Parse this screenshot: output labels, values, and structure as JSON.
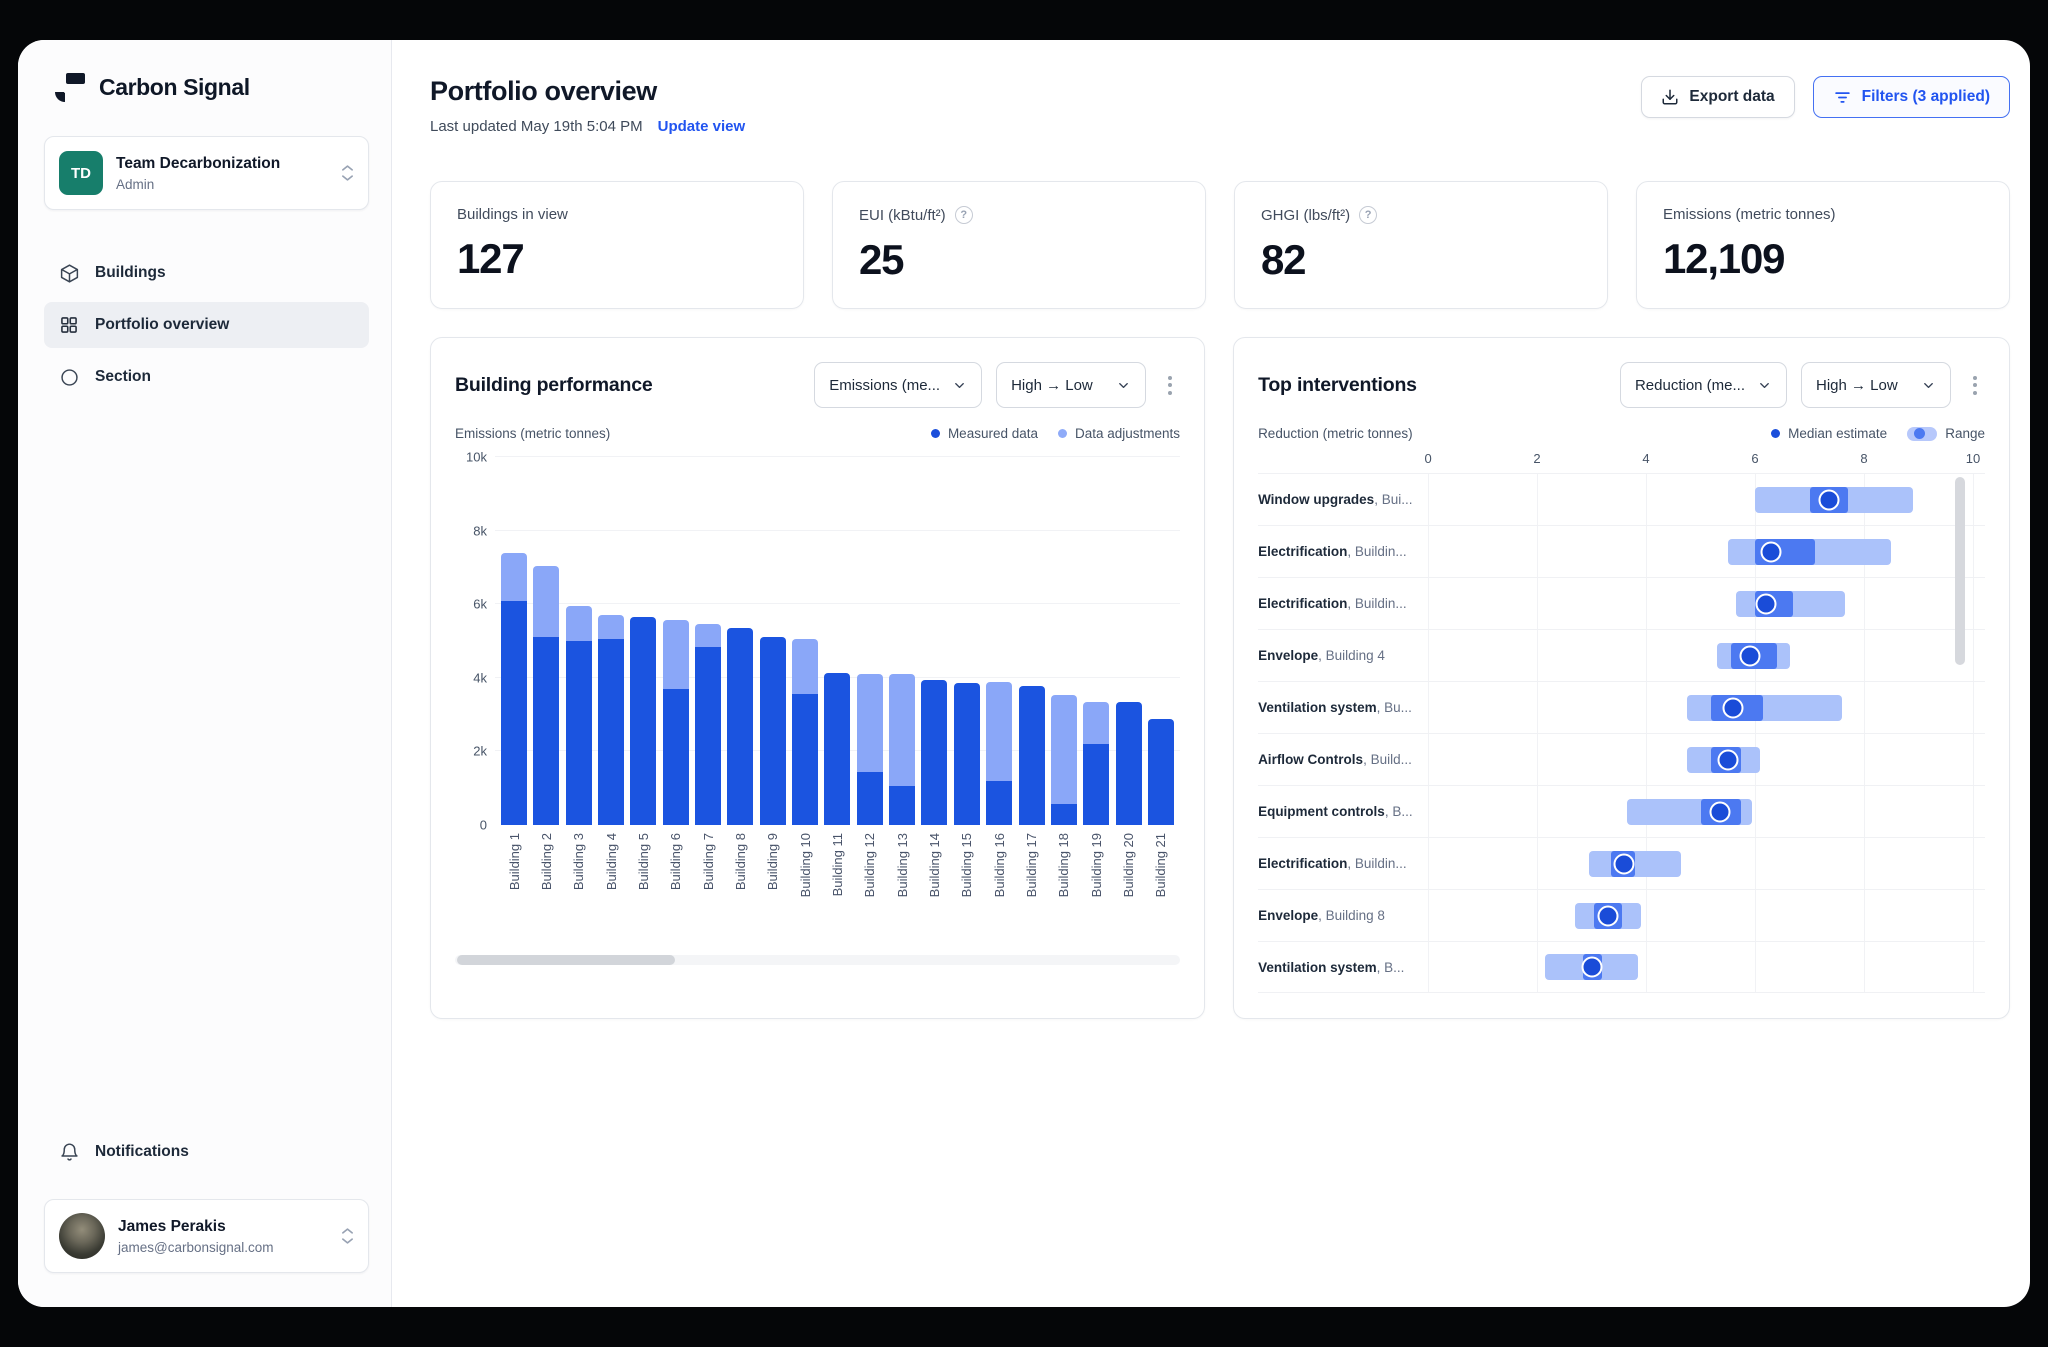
{
  "sidebar": {
    "brand": "Carbon Signal",
    "team": {
      "initials": "TD",
      "name": "Team Decarbonization",
      "role": "Admin"
    },
    "nav": [
      {
        "label": "Buildings",
        "active": false
      },
      {
        "label": "Portfolio overview",
        "active": true
      },
      {
        "label": "Section",
        "active": false
      }
    ],
    "notifications_label": "Notifications",
    "user": {
      "name": "James Perakis",
      "email": "james@carbonsignal.com"
    }
  },
  "header": {
    "title": "Portfolio overview",
    "last_updated": "Last updated May 19th 5:04 PM",
    "update_link": "Update view",
    "export_label": "Export data",
    "filters_label": "Filters (3 applied)"
  },
  "kpis": [
    {
      "label": "Buildings in view",
      "value": "127",
      "help": false
    },
    {
      "label": "EUI (kBtu/ft²)",
      "value": "25",
      "help": true
    },
    {
      "label": "GHGI (lbs/ft²)",
      "value": "82",
      "help": true
    },
    {
      "label": "Emissions (metric tonnes)",
      "value": "12,109",
      "help": false
    }
  ],
  "colors": {
    "measured": "#1b54e0",
    "adjustments": "#8aa7f8",
    "range": "#abc2fa",
    "likely_range": "#4c79f1",
    "median": "#1a4cd8",
    "accent_link": "#2154f0",
    "team_avatar": "#177e6b"
  },
  "chart_data": [
    {
      "id": "building-performance",
      "type": "bar",
      "stacked": true,
      "title": "Building performance",
      "metric_dropdown": "Emissions (me...",
      "sort_dropdown": "High → Low",
      "ylabel": "Emissions (metric tonnes)",
      "legend": [
        {
          "label": "Measured data",
          "color": "#1b54e0"
        },
        {
          "label": "Data adjustments",
          "color": "#8aa7f8"
        }
      ],
      "ylim": [
        0,
        10000
      ],
      "ytick_labels": [
        "0",
        "2k",
        "4k",
        "6k",
        "8k",
        "10k"
      ],
      "grid": true,
      "categories": [
        "Building 1",
        "Building 2",
        "Building 3",
        "Building 4",
        "Building 5",
        "Building 6",
        "Building 7",
        "Building 8",
        "Building 9",
        "Building 10",
        "Building 11",
        "Building 12",
        "Building 13",
        "Building 14",
        "Building 15",
        "Building 16",
        "Building 17",
        "Building 18",
        "Building 19",
        "Building 20",
        "Building 21"
      ],
      "series": [
        {
          "name": "Measured data",
          "values": [
            6100,
            5100,
            5000,
            5050,
            5650,
            3700,
            4850,
            5350,
            5100,
            3550,
            4130,
            1430,
            1050,
            3950,
            3850,
            1200,
            3770,
            580,
            2200,
            3330,
            2870
          ]
        },
        {
          "name": "Data adjustments",
          "values": [
            1300,
            1950,
            950,
            650,
            0,
            1880,
            600,
            0,
            0,
            1500,
            0,
            2670,
            3050,
            0,
            0,
            2690,
            0,
            2960,
            1150,
            0,
            0
          ]
        }
      ]
    },
    {
      "id": "top-interventions",
      "type": "range-dot",
      "title": "Top interventions",
      "metric_dropdown": "Reduction (me...",
      "sort_dropdown": "High → Low",
      "xlabel": "Reduction (metric tonnes)",
      "legend": [
        {
          "label": "Median estimate",
          "color": "#1a4cd8"
        },
        {
          "label": "Range",
          "color": "#abc2fa"
        }
      ],
      "xlim": [
        0,
        10
      ],
      "xticks": [
        0,
        2,
        4,
        6,
        8,
        10
      ],
      "grid": true,
      "rows": [
        {
          "intervention": "Window upgrades",
          "building": ", Bui...",
          "range": [
            6.0,
            8.9
          ],
          "likely": [
            7.0,
            7.7
          ],
          "median": 7.35
        },
        {
          "intervention": "Electrification",
          "building": ", Buildin...",
          "range": [
            5.5,
            8.5
          ],
          "likely": [
            6.0,
            7.1
          ],
          "median": 6.3
        },
        {
          "intervention": "Electrification",
          "building": ", Buildin...",
          "range": [
            5.65,
            7.65
          ],
          "likely": [
            6.0,
            6.7
          ],
          "median": 6.2
        },
        {
          "intervention": "Envelope",
          "building": ", Building 4",
          "range": [
            5.3,
            6.65
          ],
          "likely": [
            5.55,
            6.4
          ],
          "median": 5.9
        },
        {
          "intervention": "Ventilation system",
          "building": ", Bu...",
          "range": [
            4.75,
            7.6
          ],
          "likely": [
            5.2,
            6.15
          ],
          "median": 5.6
        },
        {
          "intervention": "Airflow Controls",
          "building": ", Build...",
          "range": [
            4.75,
            6.1
          ],
          "likely": [
            5.2,
            5.75
          ],
          "median": 5.5
        },
        {
          "intervention": "Equipment controls",
          "building": ", B...",
          "range": [
            3.65,
            5.95
          ],
          "likely": [
            5.0,
            5.75
          ],
          "median": 5.35
        },
        {
          "intervention": "Electrification",
          "building": ", Buildin...",
          "range": [
            2.95,
            4.65
          ],
          "likely": [
            3.35,
            3.8
          ],
          "median": 3.6
        },
        {
          "intervention": "Envelope",
          "building": ", Building 8",
          "range": [
            2.7,
            3.9
          ],
          "likely": [
            3.05,
            3.55
          ],
          "median": 3.3
        },
        {
          "intervention": "Ventilation system",
          "building": ", B...",
          "range": [
            2.15,
            3.85
          ],
          "likely": [
            2.85,
            3.2
          ],
          "median": 3.0
        }
      ]
    }
  ]
}
